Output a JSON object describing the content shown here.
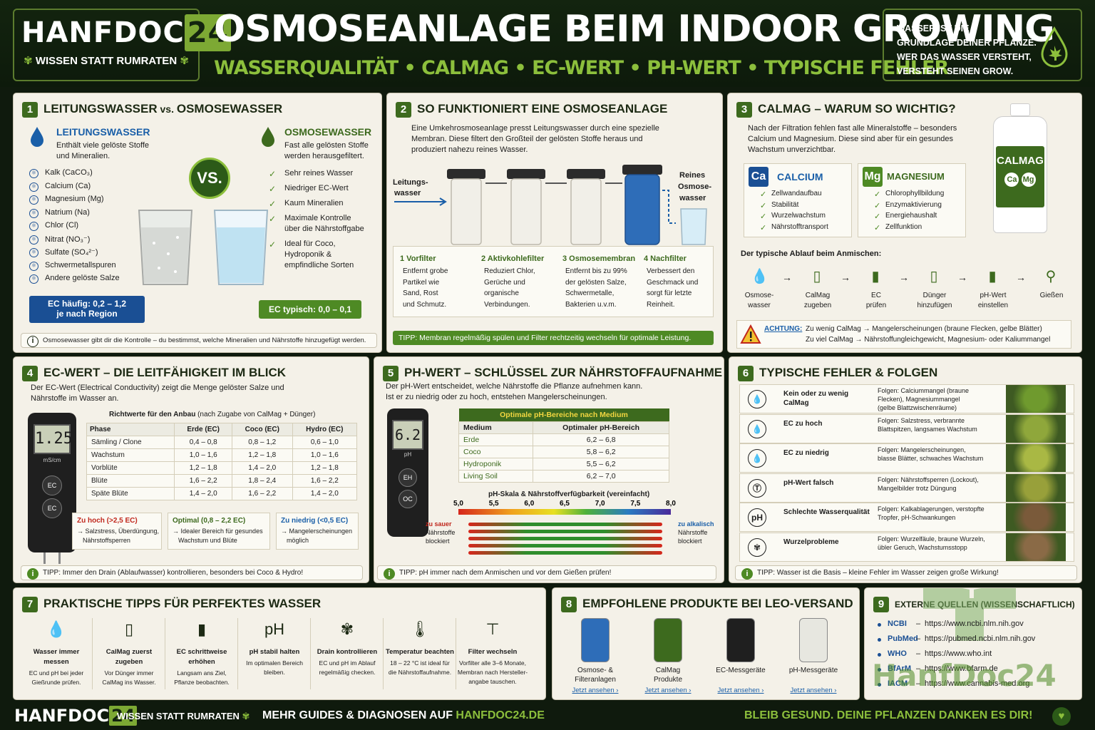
{
  "brand": {
    "name": "HANFDOC",
    "num": "24",
    "slogan": "WISSEN STATT RUMRATEN"
  },
  "title": "OSMOSEANLAGE BEIM INDOOR GROWING",
  "subtitle": "WASSERQUALITÄT • CALMAG • EC-WERT • PH-WERT • TYPISCHE FEHLER",
  "quote": [
    "WASSER IST DIE",
    "GRUNDLAGE DEINER PFLANZE.",
    "WER DAS WASSER VERSTEHT,",
    "VERSTEHT SEINEN GROW."
  ],
  "p1": {
    "num": "1",
    "title": "LEITUNGSWASSER",
    "title_vs": " vs. ",
    "title2": "OSMOSEWASSER",
    "tap": {
      "h": "LEITUNGSWASSER",
      "d1": "Enthält viele gelöste Stoffe",
      "d2": "und Mineralien.",
      "items": [
        "Kalk (CaCO₃)",
        "Calcium (Ca)",
        "Magnesium (Mg)",
        "Natrium (Na)",
        "Chlor (Cl)",
        "Nitrat (NO₃⁻)",
        "Sulfate (SO₄²⁻)",
        "Schwermetallspuren",
        "Andere gelöste Salze"
      ],
      "ec1": "EC häufig: 0,2 – 1,2",
      "ec2": "je nach Region"
    },
    "vs": "VS.",
    "ro": {
      "h": "OSMOSEWASSER",
      "d1": "Fast alle gelösten Stoffe",
      "d2": "werden herausgefiltert.",
      "items": [
        "Sehr reines Wasser",
        "Niedriger EC-Wert",
        "Kaum Mineralien",
        "Maximale Kontrolle",
        "über die Nährstoffgabe",
        "Ideal für Coco,",
        "Hydroponik &",
        "empfindliche Sorten"
      ],
      "ec": "EC typisch: 0,0 – 0,1"
    },
    "note": "Osmosewasser gibt dir die Kontrolle – du bestimmst, welche Mineralien und Nährstoffe hinzugefügt werden."
  },
  "p2": {
    "num": "2",
    "title": "SO FUNKTIONIERT EINE OSMOSEANLAGE",
    "intro": [
      "Eine Umkehrosmoseanlage presst Leitungswasser durch eine spezielle",
      "Membran. Diese filtert den Großteil der gelösten Stoffe heraus und",
      "produziert nahezu reines Wasser."
    ],
    "in1": "Leitungs-",
    "in2": "wasser",
    "out": [
      "Reines",
      "Osmose-",
      "wasser"
    ],
    "steps": [
      {
        "h": "1  Vorfilter",
        "d": [
          "Entfernt grobe",
          "Partikel wie",
          "Sand, Rost",
          "und Schmutz."
        ]
      },
      {
        "h": "2  Aktivkohlefilter",
        "d": [
          "Reduziert Chlor,",
          "Gerüche und",
          "organische",
          "Verbindungen."
        ]
      },
      {
        "h": "3  Osmosemembran",
        "d": [
          "Entfernt bis zu 99%",
          "der gelösten Salze,",
          "Schwermetalle,",
          "Bakterien u.v.m."
        ]
      },
      {
        "h": "4  Nachfilter",
        "d": [
          "Verbessert den",
          "Geschmack und",
          "sorgt für letzte",
          "Reinheit."
        ]
      }
    ],
    "tip": "TIPP: Membran regelmäßig spülen und Filter rechtzeitig wechseln für optimale Leistung."
  },
  "p3": {
    "num": "3",
    "title": "CALMAG – WARUM SO WICHTIG?",
    "intro": [
      "Nach der Filtration fehlen fast alle Mineralstoffe – besonders",
      "Calcium und Magnesium. Diese sind aber für ein gesundes",
      "Wachstum unverzichtbar."
    ],
    "ca": {
      "sym": "Ca",
      "name": "CALCIUM",
      "items": [
        "Zellwandaufbau",
        "Stabilität",
        "Wurzelwachstum",
        "Nährstofftransport"
      ]
    },
    "mg": {
      "sym": "Mg",
      "name": "MAGNESIUM",
      "items": [
        "Chlorophyllbildung",
        "Enzymaktivierung",
        "Energiehaushalt",
        "Zellfunktion"
      ]
    },
    "bottle": "CALMAG",
    "bottle_ca": "Ca",
    "bottle_mg": "Mg",
    "flow_title": "Der typische Ablauf beim Anmischen:",
    "flow": [
      [
        "Osmose-",
        "wasser"
      ],
      [
        "CalMag",
        "zugeben"
      ],
      [
        "EC",
        "prüfen"
      ],
      [
        "Dünger",
        "hinzufügen"
      ],
      [
        "pH-Wert",
        "einstellen"
      ],
      [
        "Gießen",
        ""
      ]
    ],
    "warn_h": "ACHTUNG:",
    "warn1": "Zu wenig CalMag → Mangelerscheinungen (braune Flecken, gelbe Blätter)",
    "warn2": "Zu viel CalMag → Nährstoffungleichgewicht, Magnesium- oder Kaliummangel"
  },
  "p4": {
    "num": "4",
    "title": "EC-WERT – DIE LEITFÄHIGKEIT IM BLICK",
    "intro": [
      "Der EC-Wert (Electrical Conductivity) zeigt die Menge gelöster Salze und",
      "Nährstoffe im Wasser an."
    ],
    "meter": "1.25",
    "meter_unit": "mS/cm",
    "btn": "EC",
    "table_title": "Richtwerte für den Anbau",
    "table_title2": " (nach Zugabe von CalMag + Dünger)",
    "cols": [
      "Phase",
      "Erde (EC)",
      "Coco (EC)",
      "Hydro (EC)"
    ],
    "rows": [
      [
        "Sämling / Clone",
        "0,4 – 0,8",
        "0,8 – 1,2",
        "0,6 – 1,0"
      ],
      [
        "Wachstum",
        "1,0 – 1,6",
        "1,2 – 1,8",
        "1,0 – 1,6"
      ],
      [
        "Vorblüte",
        "1,2 – 1,8",
        "1,4 – 2,0",
        "1,2 – 1,8"
      ],
      [
        "Blüte",
        "1,6 – 2,2",
        "1,8 – 2,4",
        "1,6 – 2,2"
      ],
      [
        "Späte Blüte",
        "1,4 – 2,0",
        "1,6 – 2,2",
        "1,4 – 2,0"
      ]
    ],
    "high_h": "Zu hoch (>2,5 EC)",
    "high": [
      "→ Salzstress, Überdüngung,",
      "Nährstoffsperren"
    ],
    "opt_h": "Optimal (0,8 – 2,2 EC)",
    "opt": [
      "→ Idealer Bereich für gesundes",
      "Wachstum und Blüte"
    ],
    "low_h": "Zu niedrig (<0,5 EC)",
    "low": [
      "→ Mangelerscheinungen",
      "möglich"
    ],
    "tip": "TIPP: Immer den Drain (Ablaufwasser) kontrollieren, besonders bei Coco & Hydro!"
  },
  "p5": {
    "num": "5",
    "title": "PH-WERT – SCHLÜSSEL ZUR NÄHRSTOFFAUFNAHME",
    "intro": [
      "Der pH-Wert entscheidet, welche Nährstoffe die Pflanze aufnehmen kann.",
      "Ist er zu niedrig oder zu hoch, entstehen Mangelerscheinungen."
    ],
    "meter": "6.2",
    "meter_unit": "pH",
    "btn1": "EH",
    "btn2": "OC",
    "table_title": "Optimale pH-Bereiche nach Medium",
    "cols": [
      "Medium",
      "Optimaler pH-Bereich"
    ],
    "rows": [
      [
        "Erde",
        "6,2 – 6,8"
      ],
      [
        "Coco",
        "5,8 – 6,2"
      ],
      [
        "Hydroponik",
        "5,5 – 6,2"
      ],
      [
        "Living Soil",
        "6,2 – 7,0"
      ]
    ],
    "scale_title": "pH-Skala & Nährstoffverfügbarkeit (vereinfacht)",
    "ticks": [
      "5,0",
      "5,5",
      "6,0",
      "6,5",
      "7,0",
      "7,5",
      "8,0"
    ],
    "sour": [
      "zu sauer",
      "Nährstoffe",
      "blockiert"
    ],
    "alk": [
      "zu alkalisch",
      "Nährstoffe",
      "blockiert"
    ],
    "tip": "TIPP: pH immer nach dem Anmischen und vor dem Gießen prüfen!"
  },
  "p6": {
    "num": "6",
    "title": "TYPISCHE FEHLER & FOLGEN",
    "rows": [
      {
        "e": [
          "Kein oder zu wenig",
          "CalMag"
        ],
        "f": [
          "Folgen: Calciummangel (braune",
          "Flecken), Magnesiummangel",
          "(gelbe Blattzwischenräume)"
        ],
        "icon": "drop-icon"
      },
      {
        "e": [
          "EC zu hoch"
        ],
        "f": [
          "Folgen: Salzstress, verbrannte",
          "Blattspitzen, langsames Wachstum"
        ],
        "icon": "drop-icon"
      },
      {
        "e": [
          "EC zu niedrig"
        ],
        "f": [
          "Folgen: Mangelerscheinungen,",
          "blasse Blätter, schwaches Wachstum"
        ],
        "icon": "drop-icon"
      },
      {
        "e": [
          "pH-Wert falsch"
        ],
        "f": [
          "Folgen: Nährstoffsperren (Lockout),",
          "Mangelbilder trotz Düngung"
        ],
        "icon": "gauge-icon"
      },
      {
        "e": [
          "Schlechte Wasserqualität"
        ],
        "f": [
          "Folgen: Kalkablagerungen, verstopfte",
          "Tropfer, pH-Schwankungen"
        ],
        "icon": "ph-icon"
      },
      {
        "e": [
          "Wurzelprobleme"
        ],
        "f": [
          "Folgen: Wurzelfäule, braune Wurzeln,",
          "übler Geruch, Wachstumsstopp"
        ],
        "icon": "leaf-icon"
      }
    ],
    "tip": "TIPP: Wasser ist die Basis – kleine Fehler im Wasser zeigen große Wirkung!"
  },
  "p7": {
    "num": "7",
    "title": "PRAKTISCHE TIPPS FÜR PERFEKTES WASSER",
    "tips": [
      {
        "h": [
          "Wasser immer",
          "messen"
        ],
        "d": [
          "EC und pH bei jeder",
          "Gießrunde prüfen."
        ]
      },
      {
        "h": [
          "CalMag zuerst",
          "zugeben"
        ],
        "d": [
          "Vor Dünger immer",
          "CalMag ins Wasser."
        ]
      },
      {
        "h": [
          "EC schrittweise",
          "erhöhen"
        ],
        "d": [
          "Langsam ans Ziel,",
          "Pflanze beobachten."
        ]
      },
      {
        "h": [
          "pH stabil halten"
        ],
        "d": [
          "Im optimalen Bereich",
          "bleiben."
        ]
      },
      {
        "h": [
          "Drain kontrollieren"
        ],
        "d": [
          "EC und pH im Ablauf",
          "regelmäßig checken."
        ]
      },
      {
        "h": [
          "Temperatur beachten"
        ],
        "d": [
          "18 – 22 °C ist ideal für",
          "die Nährstoffaufnahme."
        ]
      },
      {
        "h": [
          "Filter wechseln"
        ],
        "d": [
          "Vorfilter alle 3–6 Monate,",
          "Membran nach Hersteller-",
          "angabe tauschen."
        ]
      }
    ]
  },
  "p8": {
    "num": "8",
    "title": "EMPFOHLENE PRODUKTE BEI LEO-VERSAND",
    "products": [
      {
        "n": [
          "Osmose- &",
          "Filteranlagen"
        ],
        "l": "Jetzt ansehen ›"
      },
      {
        "n": [
          "CalMag",
          "Produkte"
        ],
        "l": "Jetzt ansehen ›"
      },
      {
        "n": [
          "EC-Messgeräte"
        ],
        "l": "Jetzt ansehen ›"
      },
      {
        "n": [
          "pH-Messgeräte"
        ],
        "l": "Jetzt ansehen ›"
      }
    ]
  },
  "p9": {
    "num": "9",
    "title": "EXTERNE QUELLEN (WISSENSCHAFTLICH)",
    "src": [
      [
        "NCBI",
        "https://www.ncbi.nlm.nih.gov"
      ],
      [
        "PubMed",
        "https://pubmed.ncbi.nlm.nih.gov"
      ],
      [
        "WHO",
        "https://www.who.int"
      ],
      [
        "BfArM",
        "https://www.bfarm.de"
      ],
      [
        "IACM",
        "https://www.cannabis-med.org"
      ]
    ],
    "watermark": "HanfDoc24"
  },
  "footer": {
    "logo": "HANFDOC",
    "num": "24",
    "slogan": "WISSEN STATT RUMRATEN",
    "more": "MEHR GUIDES & DIAGNOSEN AUF ",
    "url": "HANFDOC24.DE",
    "right": "BLEIB GESUND. DEINE PFLANZEN DANKEN ES DIR!"
  }
}
